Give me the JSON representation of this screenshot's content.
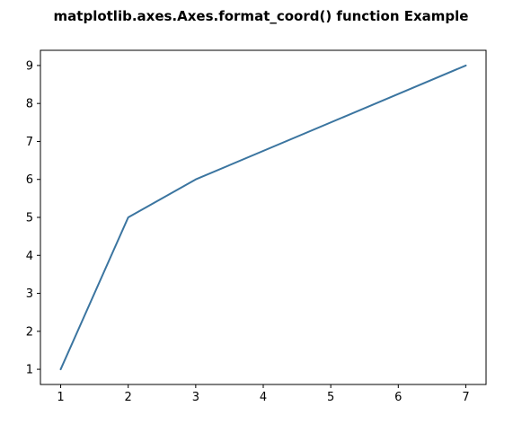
{
  "chart_data": {
    "type": "line",
    "title": "matplotlib.axes.Axes.format_coord() function Example",
    "xlabel": "",
    "ylabel": "",
    "x": [
      1,
      2,
      3,
      7
    ],
    "series": [
      {
        "values": [
          1,
          5,
          6,
          9
        ],
        "color": "#3b75a0"
      }
    ],
    "xlim": [
      0.7,
      7.3
    ],
    "ylim": [
      0.6,
      9.4
    ],
    "xticks": [
      1,
      2,
      3,
      4,
      5,
      6,
      7
    ],
    "yticks": [
      1,
      2,
      3,
      4,
      5,
      6,
      7,
      8,
      9
    ],
    "grid": false,
    "legend": "none"
  }
}
